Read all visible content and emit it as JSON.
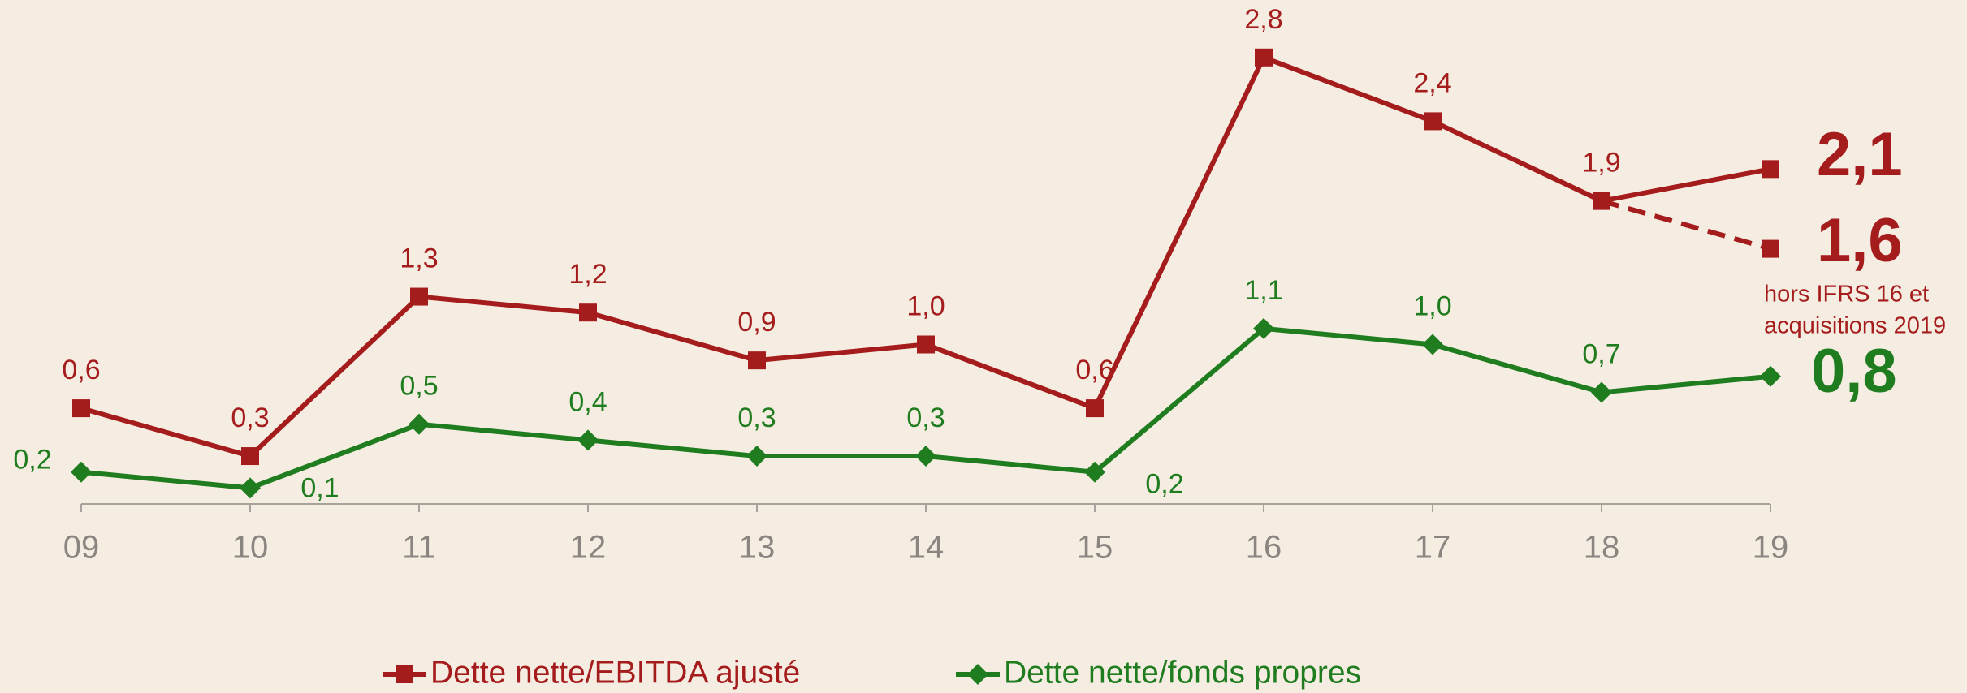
{
  "chart_data": {
    "type": "line",
    "categories": [
      "09",
      "10",
      "11",
      "12",
      "13",
      "14",
      "15",
      "16",
      "17",
      "18",
      "19"
    ],
    "series": [
      {
        "name": "Dette nette/EBITDA ajusté",
        "color": "#a51c1c",
        "marker": "square",
        "values": [
          0.6,
          0.3,
          1.3,
          1.2,
          0.9,
          1.0,
          0.6,
          2.8,
          2.4,
          1.9,
          2.1
        ],
        "value_labels": [
          "0,6",
          "0,3",
          "1,3",
          "1,2",
          "0,9",
          "1,0",
          "0,6",
          "2,8",
          "2,4",
          "1,9",
          "2,1"
        ]
      },
      {
        "name": "Dette nette/fonds propres",
        "color": "#1f7d1f",
        "marker": "diamond",
        "values": [
          0.2,
          0.1,
          0.5,
          0.4,
          0.3,
          0.3,
          0.2,
          1.1,
          1.0,
          0.7,
          0.8
        ],
        "value_labels": [
          "0,2",
          "0,1",
          "0,5",
          "0,4",
          "0,3",
          "0,3",
          "0,2",
          "1,1",
          "1,0",
          "0,7",
          "0,8"
        ]
      }
    ],
    "dashed": {
      "value": 1.6,
      "label": "1,6",
      "caption": [
        "hors IFRS 16 et",
        "acquisitions 2019"
      ]
    },
    "ylim": [
      0,
      3
    ],
    "grid": false,
    "legend": "bottom"
  }
}
